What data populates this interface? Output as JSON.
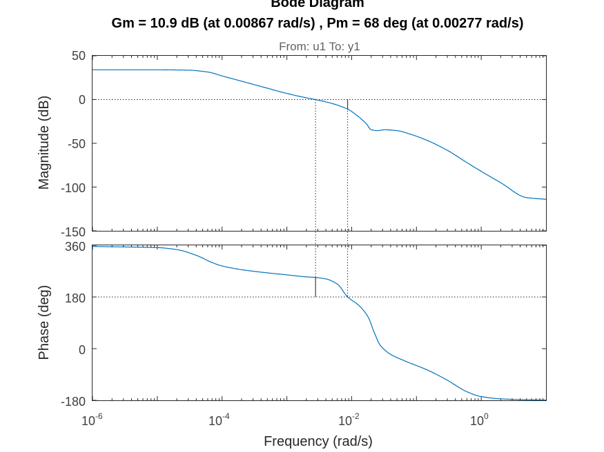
{
  "chart_data": {
    "type": "line",
    "title": "Bode Diagram",
    "subtitle": "Gm = 10.9 dB (at 0.00867 rad/s) ,  Pm = 68 deg (at 0.00277 rad/s)",
    "io_label": "From: u1  To: y1",
    "xlabel": "Frequency  (rad/s)",
    "xscale": "log",
    "xlim": [
      1e-06,
      10
    ],
    "x_tick_labels": [
      {
        "base": "10",
        "exp": "-6",
        "value": 1e-06
      },
      {
        "base": "10",
        "exp": "-4",
        "value": 0.0001
      },
      {
        "base": "10",
        "exp": "-2",
        "value": 0.01
      },
      {
        "base": "10",
        "exp": "0",
        "value": 1
      }
    ],
    "gain_margin": {
      "value_db": 10.9,
      "frequency": 0.00867
    },
    "phase_margin": {
      "value_deg": 68,
      "frequency": 0.00277
    },
    "line_color": "#0072BD",
    "magnitude": {
      "ylabel": "Magnitude (dB)",
      "ylim": [
        -150,
        50
      ],
      "yticks": [
        "50",
        "0",
        "-50",
        "-100",
        "-150"
      ],
      "reference_line": 0,
      "series": {
        "name": "Magnitude",
        "x": [
          1e-06,
          1e-05,
          3e-05,
          6e-05,
          0.0001,
          0.0002,
          0.0005,
          0.001,
          0.002,
          0.00277,
          0.005,
          0.00867,
          0.012,
          0.017,
          0.02,
          0.025,
          0.032,
          0.05,
          0.08,
          0.15,
          0.3,
          0.6,
          1,
          2,
          5,
          10
        ],
        "values": [
          34,
          34,
          33.6,
          31.5,
          27,
          21,
          13,
          7,
          2,
          0,
          -4.5,
          -10.9,
          -18,
          -28,
          -34.5,
          -35.5,
          -34.5,
          -35.5,
          -39.5,
          -47,
          -58,
          -72,
          -82,
          -95,
          -112,
          -114
        ]
      }
    },
    "phase": {
      "ylabel": "Phase (deg)",
      "ylim": [
        -180,
        360
      ],
      "yticks": [
        "360",
        "180",
        "0",
        "-180"
      ],
      "reference_line": 180,
      "series": {
        "name": "Phase",
        "x": [
          1e-06,
          1e-05,
          2e-05,
          4e-05,
          7e-05,
          0.0001,
          0.0002,
          0.0005,
          0.001,
          0.002,
          0.00277,
          0.004,
          0.006,
          0.00867,
          0.013,
          0.018,
          0.022,
          0.028,
          0.04,
          0.07,
          0.15,
          0.3,
          0.6,
          1,
          2,
          5,
          10
        ],
        "values": [
          356,
          352,
          345,
          325,
          300,
          288,
          275,
          264,
          257,
          250,
          248,
          243,
          225,
          180,
          150,
          110,
          60,
          10,
          -20,
          -45,
          -75,
          -110,
          -150,
          -167,
          -175,
          -178,
          -179
        ]
      }
    }
  }
}
